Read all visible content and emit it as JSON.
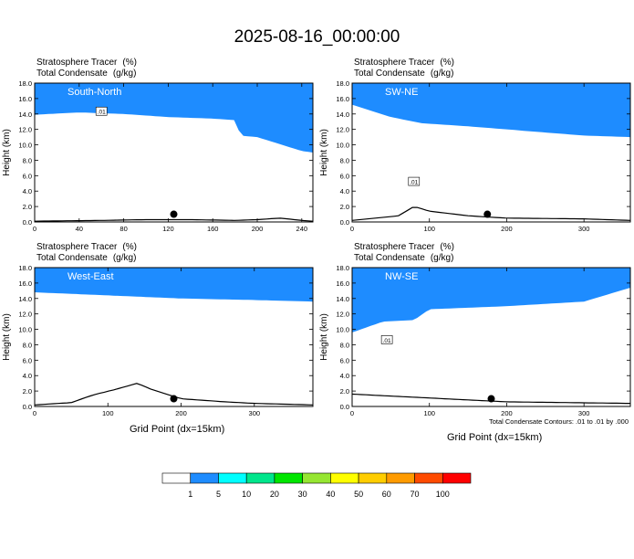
{
  "title": "2025-08-16_00:00:00",
  "variable_labels": {
    "tracer": "Stratosphere Tracer",
    "tracer_unit": "(%)",
    "condensate": "Total Condensate",
    "condensate_unit": "(g/kg)"
  },
  "ylabel": "Height (km)",
  "xlabel": "Grid Point (dx=15km)",
  "footer_note": "Total Condensate Contours: .01 to .01 by .000",
  "contour_label": ".01",
  "colorbar": {
    "levels": [
      "1",
      "5",
      "10",
      "20",
      "30",
      "40",
      "50",
      "60",
      "70",
      "100"
    ],
    "colors": [
      "#ffffff",
      "#1e8cff",
      "#00ffff",
      "#00e68c",
      "#00e600",
      "#96e632",
      "#ffff00",
      "#ffcd00",
      "#ff9b00",
      "#ff4b00",
      "#ff0000"
    ]
  },
  "chart_data": [
    {
      "type": "heatmap",
      "name": "South-North",
      "xlim": [
        0,
        250
      ],
      "ylim": [
        0,
        18
      ],
      "xticks": [
        0,
        40,
        80,
        120,
        160,
        200,
        240
      ],
      "yticks": [
        "0.0",
        "2.0",
        "4.0",
        "6.0",
        "8.0",
        "10.0",
        "12.0",
        "14.0",
        "16.0",
        "18.0"
      ],
      "tropopause_height_km": {
        "x": [
          0,
          40,
          80,
          120,
          160,
          180,
          185,
          200,
          240,
          250
        ],
        "y": [
          13.9,
          14.2,
          14.0,
          13.6,
          13.4,
          13.2,
          11.2,
          11.0,
          9.2,
          9.0
        ]
      },
      "terrain_height_km": {
        "x": [
          0,
          60,
          100,
          140,
          180,
          200,
          220,
          240,
          250
        ],
        "y": [
          0.1,
          0.2,
          0.3,
          0.3,
          0.2,
          0.3,
          0.5,
          0.2,
          0.1
        ]
      },
      "marker": {
        "x": 125,
        "y": 1.0
      }
    },
    {
      "type": "heatmap",
      "name": "SW-NE",
      "xlim": [
        0,
        360
      ],
      "ylim": [
        0,
        18
      ],
      "xticks": [
        0,
        100,
        200,
        300
      ],
      "yticks": [
        "0.0",
        "2.0",
        "4.0",
        "6.0",
        "8.0",
        "10.0",
        "12.0",
        "14.0",
        "16.0",
        "18.0"
      ],
      "tropopause_height_km": {
        "x": [
          0,
          50,
          90,
          150,
          250,
          300,
          360
        ],
        "y": [
          15.2,
          13.6,
          12.8,
          12.4,
          11.6,
          11.2,
          11.0
        ]
      },
      "terrain_height_km": {
        "x": [
          0,
          60,
          80,
          100,
          150,
          200,
          300,
          360
        ],
        "y": [
          0.2,
          0.8,
          2.0,
          1.4,
          0.8,
          0.5,
          0.4,
          0.2
        ]
      },
      "marker": {
        "x": 175,
        "y": 1.0
      }
    },
    {
      "type": "heatmap",
      "name": "West-East",
      "xlim": [
        0,
        380
      ],
      "ylim": [
        0,
        18
      ],
      "xticks": [
        0,
        100,
        200,
        300
      ],
      "yticks": [
        "0.0",
        "2.0",
        "4.0",
        "6.0",
        "8.0",
        "10.0",
        "12.0",
        "14.0",
        "16.0",
        "18.0"
      ],
      "tropopause_height_km": {
        "x": [
          0,
          100,
          200,
          300,
          380
        ],
        "y": [
          14.8,
          14.4,
          14.0,
          13.8,
          13.6
        ]
      },
      "terrain_height_km": {
        "x": [
          0,
          50,
          80,
          110,
          140,
          160,
          200,
          260,
          300,
          380
        ],
        "y": [
          0.2,
          0.5,
          1.5,
          2.2,
          3.0,
          2.2,
          1.0,
          0.6,
          0.4,
          0.2
        ]
      },
      "marker": {
        "x": 190,
        "y": 1.0
      }
    },
    {
      "type": "heatmap",
      "name": "NW-SE",
      "xlim": [
        0,
        360
      ],
      "ylim": [
        0,
        18
      ],
      "xticks": [
        0,
        100,
        200,
        300
      ],
      "yticks": [
        "0.0",
        "2.0",
        "4.0",
        "6.0",
        "8.0",
        "10.0",
        "12.0",
        "14.0",
        "16.0",
        "18.0"
      ],
      "tropopause_height_km": {
        "x": [
          0,
          40,
          80,
          100,
          200,
          300,
          360
        ],
        "y": [
          9.6,
          11.0,
          11.2,
          12.6,
          13.0,
          13.6,
          15.4
        ]
      },
      "terrain_height_km": {
        "x": [
          0,
          40,
          80,
          120,
          200,
          280,
          360
        ],
        "y": [
          1.6,
          1.4,
          1.2,
          1.0,
          0.6,
          0.5,
          0.4
        ]
      },
      "marker": {
        "x": 180,
        "y": 1.0
      }
    }
  ]
}
